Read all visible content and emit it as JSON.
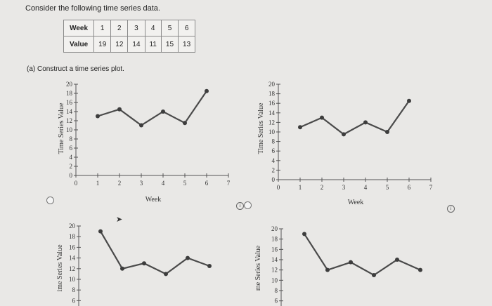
{
  "question": "Consider the following time series data.",
  "table": {
    "row_headers": [
      "Week",
      "Value"
    ],
    "weeks": [
      "1",
      "2",
      "3",
      "4",
      "5",
      "6"
    ],
    "values": [
      "19",
      "12",
      "14",
      "11",
      "15",
      "13"
    ]
  },
  "part_a": "(a) Construct a time series plot.",
  "info_icon_glyph": "i",
  "chart_data": [
    {
      "type": "line",
      "xlabel": "Week",
      "ylabel": "Time Series Value",
      "xlim": [
        0,
        7
      ],
      "ylim": [
        0,
        20
      ],
      "x_ticks": [
        "0",
        "1",
        "2",
        "3",
        "4",
        "5",
        "6",
        "7"
      ],
      "y_ticks": [
        "0",
        "2",
        "4",
        "6",
        "8",
        "10",
        "12",
        "14",
        "16",
        "18",
        "20"
      ],
      "x": [
        1,
        2,
        3,
        4,
        5,
        6
      ],
      "y": [
        13,
        14.5,
        11,
        14,
        11.5,
        18.5
      ]
    },
    {
      "type": "line",
      "xlabel": "Week",
      "ylabel": "Time Series Value",
      "xlim": [
        0,
        7
      ],
      "ylim": [
        0,
        20
      ],
      "x_ticks": [
        "0",
        "1",
        "2",
        "3",
        "4",
        "5",
        "6",
        "7"
      ],
      "y_ticks": [
        "0",
        "2",
        "4",
        "6",
        "8",
        "10",
        "12",
        "14",
        "16",
        "18",
        "20"
      ],
      "x": [
        1,
        2,
        3,
        4,
        5,
        6
      ],
      "y": [
        11,
        13,
        9.5,
        12,
        10,
        16.5
      ]
    },
    {
      "type": "line",
      "xlabel": "",
      "ylabel": "ime Series Value",
      "xlim": [
        0,
        7
      ],
      "ylim": [
        5,
        20
      ],
      "x_ticks": [],
      "y_ticks": [
        "6",
        "8",
        "10",
        "12",
        "14",
        "16",
        "18",
        "20"
      ],
      "x": [
        1,
        2,
        3,
        4,
        5,
        6
      ],
      "y": [
        19,
        12,
        13,
        11,
        14,
        12.5
      ]
    },
    {
      "type": "line",
      "xlabel": "",
      "ylabel": "me Series Value",
      "xlim": [
        0,
        7
      ],
      "ylim": [
        5,
        20
      ],
      "x_ticks": [],
      "y_ticks": [
        "6",
        "8",
        "10",
        "12",
        "14",
        "16",
        "18",
        "20"
      ],
      "x": [
        1,
        2,
        3,
        4,
        5,
        6
      ],
      "y": [
        19,
        12,
        13.5,
        11,
        14,
        12
      ]
    }
  ]
}
